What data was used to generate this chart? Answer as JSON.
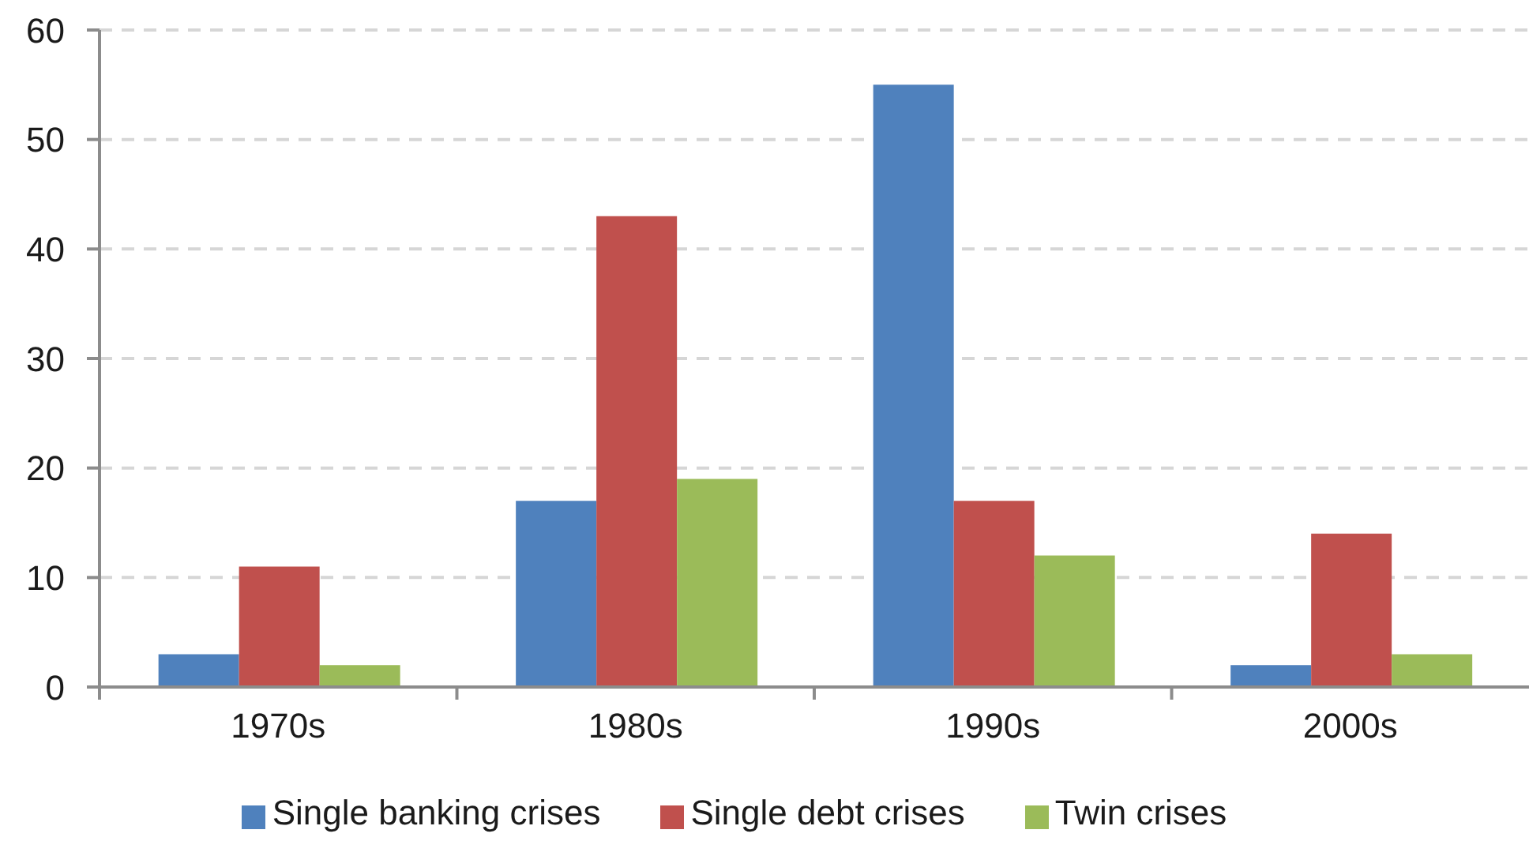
{
  "chart_data": {
    "type": "bar",
    "categories": [
      "1970s",
      "1980s",
      "1990s",
      "2000s"
    ],
    "series": [
      {
        "name": "Single banking crises",
        "color": "#4f81bd",
        "values": [
          3,
          17,
          55,
          2
        ]
      },
      {
        "name": "Single debt crises",
        "color": "#c0504d",
        "values": [
          11,
          43,
          17,
          14
        ]
      },
      {
        "name": "Twin crises",
        "color": "#9bbb59",
        "values": [
          2,
          19,
          12,
          3
        ]
      }
    ],
    "ylim": [
      0,
      60
    ],
    "yticks": [
      0,
      10,
      20,
      30,
      40,
      50,
      60
    ],
    "grid": "y",
    "legend": "bottom"
  }
}
